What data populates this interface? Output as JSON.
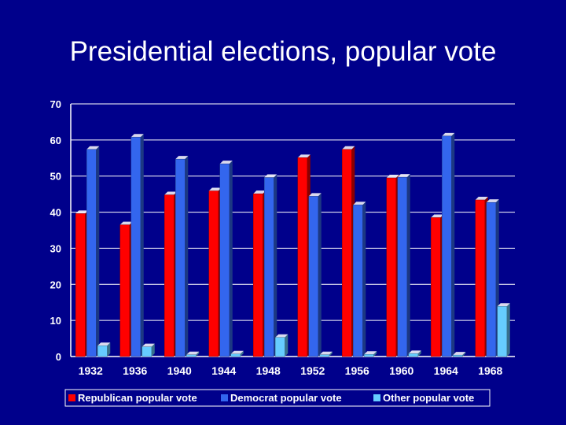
{
  "slide": {
    "title": "Presidential elections, popular vote"
  },
  "colors": {
    "background": "#00008b",
    "grid": "#ffffff",
    "text": "#ffffff"
  },
  "chart_data": {
    "type": "bar",
    "title": "",
    "xlabel": "",
    "ylabel": "",
    "ylim": [
      0,
      70
    ],
    "yticks": [
      0,
      10,
      20,
      30,
      40,
      50,
      60,
      70
    ],
    "grid": true,
    "legend": "bottom",
    "categories": [
      "1932",
      "1936",
      "1940",
      "1944",
      "1948",
      "1952",
      "1956",
      "1960",
      "1964",
      "1968"
    ],
    "series": [
      {
        "name": "Republican popular vote",
        "color": "#ff0000",
        "values": [
          39.6,
          36.5,
          44.8,
          45.9,
          45.1,
          55.1,
          57.4,
          49.5,
          38.5,
          43.4
        ]
      },
      {
        "name": "Democrat popular vote",
        "color": "#3366ee",
        "values": [
          57.4,
          60.8,
          54.7,
          53.4,
          49.6,
          44.4,
          42.0,
          49.7,
          61.1,
          42.7
        ]
      },
      {
        "name": "Other popular vote",
        "color": "#66ccff",
        "values": [
          3.0,
          2.7,
          0.5,
          0.7,
          5.3,
          0.5,
          0.6,
          0.8,
          0.4,
          13.9
        ]
      }
    ]
  }
}
